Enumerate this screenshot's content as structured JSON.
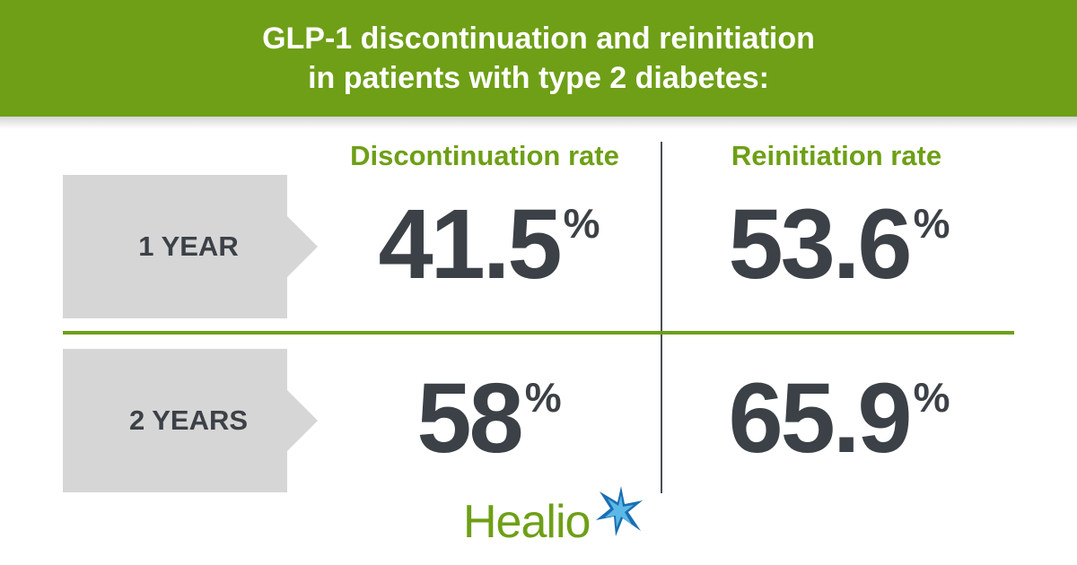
{
  "header": {
    "title_line1": "GLP-1 discontinuation and reinitiation",
    "title_line2": "in patients with type 2 diabetes:"
  },
  "columns": {
    "discontinuation": "Discontinuation rate",
    "reinitiation": "Reinitiation rate"
  },
  "rows": [
    {
      "label": "1 YEAR",
      "discontinuation_value": "41.5",
      "reinitiation_value": "53.6"
    },
    {
      "label": "2 YEARS",
      "discontinuation_value": "58",
      "reinitiation_value": "65.9"
    }
  ],
  "unit": "%",
  "logo": {
    "text": "Healio",
    "icon": "star-icon"
  },
  "colors": {
    "brand_green": "#6e9f16",
    "dark_text": "#3c4147",
    "label_gray": "#d6d6d6",
    "star_blue": "#1a6fb3"
  }
}
